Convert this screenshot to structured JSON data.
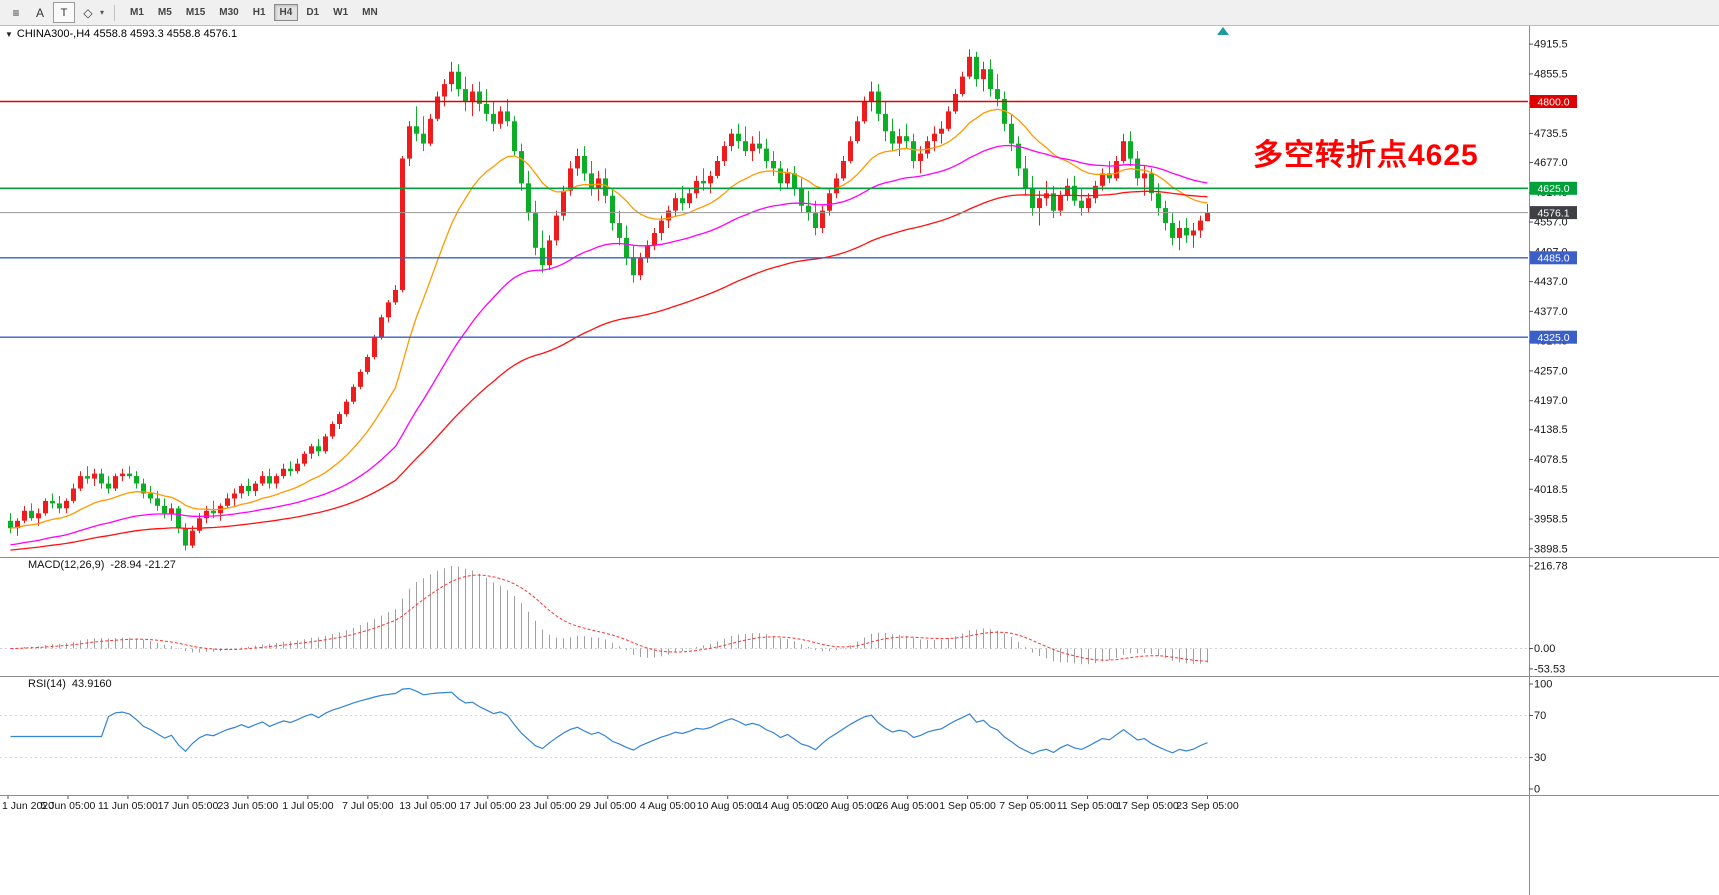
{
  "toolbar": {
    "tools": [
      {
        "name": "chart-shift-icon",
        "glyph": "≡"
      },
      {
        "name": "text-annotation-icon",
        "glyph": "A"
      },
      {
        "name": "textbox-icon",
        "glyph": "T",
        "boxed": true
      },
      {
        "name": "shapes-icon",
        "glyph": "◇",
        "caret": true
      }
    ],
    "timeframes": [
      "M1",
      "M5",
      "M15",
      "M30",
      "H1",
      "H4",
      "D1",
      "W1",
      "MN"
    ],
    "active_timeframe": "H4"
  },
  "chart": {
    "collapse_arrow": "▼",
    "header": "CHINA300-,H4 4558.8 4593.3 4558.8 4576.1",
    "annotation": {
      "text": "多空转折点4625",
      "color": "#ff0000"
    }
  },
  "chart_data": {
    "type": "candlestick",
    "symbol": "CHINA300-",
    "timeframe": "H4",
    "ohlc_display": {
      "open": 4558.8,
      "high": 4593.3,
      "low": 4558.8,
      "close": 4576.1
    },
    "colors": {
      "up": "#ee1c1c",
      "down": "#0cae26"
    },
    "price_axis": {
      "view_high": 4944,
      "view_low": 3884,
      "ticks": [
        4915.5,
        4855.5,
        4795.5,
        4735.5,
        4677.0,
        4617.0,
        4557.0,
        4497.0,
        4437.0,
        4377.0,
        4317.0,
        4257.0,
        4197.0,
        4138.5,
        4078.5,
        4018.5,
        3958.5,
        3898.5
      ]
    },
    "horizontal_lines": [
      {
        "price": 4800.0,
        "label": "4800.0",
        "line_color": "#e00000",
        "badge_color": "#e00000",
        "width": 1.4
      },
      {
        "price": 4625.0,
        "label": "4625.0",
        "line_color": "#00a13a",
        "badge_color": "#00a13a",
        "width": 1.6
      },
      {
        "price": 4576.1,
        "label": "4576.1",
        "line_color": "#999999",
        "badge_color": "#3f3f46",
        "width": 1
      },
      {
        "price": 4485.0,
        "label": "4485.0",
        "line_color": "#3a5fc8",
        "badge_color": "#3a5fc8",
        "width": 1.4
      },
      {
        "price": 4325.0,
        "label": "4325.0",
        "line_color": "#3a5fc8",
        "badge_color": "#3a5fc8",
        "width": 1.4
      }
    ],
    "moving_averages": [
      {
        "period": 18,
        "color": "#ff9a00"
      },
      {
        "period": 48,
        "color": "#ff00ff",
        "seed": 3905
      },
      {
        "period": 90,
        "color": "#ff1111",
        "seed": 3895
      }
    ],
    "indicators": {
      "macd": {
        "label": "MACD(12,26,9)",
        "values_label": "-28.94 -21.27",
        "params": [
          12,
          26,
          9
        ],
        "axis": [
          216.78,
          0,
          -53.53
        ],
        "histogram_color": "#a0a0a0",
        "signal_color": "#ff3333"
      },
      "rsi": {
        "label": "RSI(14)",
        "value_label": "43.9160",
        "period": 14,
        "axis": [
          100,
          70,
          30,
          0
        ],
        "levels": [
          70,
          30
        ],
        "line_color": "#3383d6"
      }
    },
    "time_labels": [
      "1 Jun 2020",
      "5 Jun 05:00",
      "11 Jun 05:00",
      "17 Jun 05:00",
      "23 Jun 05:00",
      "1 Jul 05:00",
      "7 Jul 05:00",
      "13 Jul 05:00",
      "17 Jul 05:00",
      "23 Jul 05:00",
      "29 Jul 05:00",
      "4 Aug 05:00",
      "10 Aug 05:00",
      "14 Aug 05:00",
      "20 Aug 05:00",
      "26 Aug 05:00",
      "1 Sep 05:00",
      "7 Sep 05:00",
      "11 Sep 05:00",
      "17 Sep 05:00",
      "23 Sep 05:00"
    ],
    "candles": [
      [
        3955,
        3970,
        3930,
        3940
      ],
      [
        3940,
        3960,
        3925,
        3955
      ],
      [
        3955,
        3985,
        3950,
        3975
      ],
      [
        3975,
        3990,
        3955,
        3960
      ],
      [
        3960,
        3980,
        3945,
        3970
      ],
      [
        3970,
        4000,
        3965,
        3995
      ],
      [
        3995,
        4010,
        3980,
        3990
      ],
      [
        3990,
        4005,
        3970,
        3980
      ],
      [
        3980,
        4000,
        3970,
        3995
      ],
      [
        3995,
        4030,
        3990,
        4020
      ],
      [
        4020,
        4055,
        4015,
        4045
      ],
      [
        4045,
        4065,
        4030,
        4040
      ],
      [
        4040,
        4060,
        4025,
        4050
      ],
      [
        4050,
        4060,
        4020,
        4030
      ],
      [
        4030,
        4045,
        4010,
        4020
      ],
      [
        4020,
        4050,
        4015,
        4045
      ],
      [
        4045,
        4060,
        4035,
        4050
      ],
      [
        4050,
        4065,
        4040,
        4045
      ],
      [
        4045,
        4055,
        4020,
        4030
      ],
      [
        4030,
        4040,
        4000,
        4010
      ],
      [
        4010,
        4025,
        3990,
        4000
      ],
      [
        4000,
        4015,
        3975,
        3985
      ],
      [
        3985,
        4000,
        3960,
        3970
      ],
      [
        3970,
        3990,
        3955,
        3980
      ],
      [
        3980,
        3985,
        3930,
        3940
      ],
      [
        3940,
        3950,
        3895,
        3905
      ],
      [
        3905,
        3945,
        3900,
        3935
      ],
      [
        3935,
        3970,
        3930,
        3960
      ],
      [
        3960,
        3985,
        3950,
        3975
      ],
      [
        3975,
        3995,
        3960,
        3970
      ],
      [
        3970,
        3990,
        3955,
        3985
      ],
      [
        3985,
        4010,
        3980,
        4000
      ],
      [
        4000,
        4020,
        3985,
        4010
      ],
      [
        4010,
        4030,
        4000,
        4025
      ],
      [
        4025,
        4040,
        4005,
        4015
      ],
      [
        4015,
        4035,
        4005,
        4030
      ],
      [
        4030,
        4055,
        4025,
        4045
      ],
      [
        4045,
        4060,
        4020,
        4030
      ],
      [
        4030,
        4050,
        4020,
        4045
      ],
      [
        4045,
        4070,
        4040,
        4060
      ],
      [
        4060,
        4075,
        4045,
        4055
      ],
      [
        4055,
        4080,
        4050,
        4070
      ],
      [
        4070,
        4095,
        4065,
        4090
      ],
      [
        4090,
        4110,
        4080,
        4105
      ],
      [
        4105,
        4120,
        4085,
        4095
      ],
      [
        4095,
        4130,
        4090,
        4125
      ],
      [
        4125,
        4155,
        4120,
        4150
      ],
      [
        4150,
        4175,
        4140,
        4170
      ],
      [
        4170,
        4200,
        4165,
        4195
      ],
      [
        4195,
        4230,
        4190,
        4225
      ],
      [
        4225,
        4260,
        4220,
        4255
      ],
      [
        4255,
        4290,
        4250,
        4285
      ],
      [
        4285,
        4330,
        4280,
        4325
      ],
      [
        4325,
        4370,
        4320,
        4365
      ],
      [
        4365,
        4400,
        4355,
        4395
      ],
      [
        4395,
        4430,
        4390,
        4420
      ],
      [
        4420,
        4690,
        4415,
        4685
      ],
      [
        4685,
        4760,
        4670,
        4750
      ],
      [
        4750,
        4790,
        4720,
        4735
      ],
      [
        4735,
        4770,
        4700,
        4715
      ],
      [
        4715,
        4775,
        4710,
        4765
      ],
      [
        4765,
        4820,
        4760,
        4810
      ],
      [
        4810,
        4845,
        4790,
        4835
      ],
      [
        4835,
        4880,
        4820,
        4860
      ],
      [
        4860,
        4875,
        4810,
        4825
      ],
      [
        4825,
        4850,
        4780,
        4800
      ],
      [
        4800,
        4835,
        4770,
        4820
      ],
      [
        4820,
        4840,
        4780,
        4795
      ],
      [
        4795,
        4825,
        4760,
        4775
      ],
      [
        4775,
        4800,
        4740,
        4755
      ],
      [
        4755,
        4790,
        4745,
        4780
      ],
      [
        4780,
        4805,
        4750,
        4760
      ],
      [
        4760,
        4770,
        4690,
        4700
      ],
      [
        4700,
        4715,
        4620,
        4635
      ],
      [
        4635,
        4660,
        4560,
        4575
      ],
      [
        4575,
        4600,
        4490,
        4505
      ],
      [
        4505,
        4540,
        4455,
        4470
      ],
      [
        4470,
        4530,
        4460,
        4520
      ],
      [
        4520,
        4580,
        4510,
        4570
      ],
      [
        4570,
        4630,
        4560,
        4620
      ],
      [
        4620,
        4680,
        4610,
        4665
      ],
      [
        4665,
        4705,
        4650,
        4690
      ],
      [
        4690,
        4710,
        4640,
        4655
      ],
      [
        4655,
        4680,
        4610,
        4625
      ],
      [
        4625,
        4660,
        4600,
        4645
      ],
      [
        4645,
        4665,
        4595,
        4610
      ],
      [
        4610,
        4625,
        4540,
        4555
      ],
      [
        4555,
        4580,
        4510,
        4525
      ],
      [
        4525,
        4550,
        4470,
        4485
      ],
      [
        4485,
        4510,
        4435,
        4450
      ],
      [
        4450,
        4495,
        4440,
        4485
      ],
      [
        4485,
        4520,
        4475,
        4510
      ],
      [
        4510,
        4545,
        4500,
        4535
      ],
      [
        4535,
        4570,
        4520,
        4560
      ],
      [
        4560,
        4590,
        4545,
        4580
      ],
      [
        4580,
        4615,
        4570,
        4605
      ],
      [
        4605,
        4630,
        4580,
        4595
      ],
      [
        4595,
        4625,
        4585,
        4615
      ],
      [
        4615,
        4650,
        4605,
        4640
      ],
      [
        4640,
        4665,
        4620,
        4635
      ],
      [
        4635,
        4660,
        4615,
        4650
      ],
      [
        4650,
        4690,
        4645,
        4680
      ],
      [
        4680,
        4720,
        4670,
        4710
      ],
      [
        4710,
        4745,
        4700,
        4735
      ],
      [
        4735,
        4755,
        4705,
        4720
      ],
      [
        4720,
        4750,
        4690,
        4700
      ],
      [
        4700,
        4730,
        4680,
        4715
      ],
      [
        4715,
        4740,
        4695,
        4705
      ],
      [
        4705,
        4725,
        4665,
        4680
      ],
      [
        4680,
        4700,
        4650,
        4665
      ],
      [
        4665,
        4680,
        4620,
        4635
      ],
      [
        4635,
        4665,
        4625,
        4655
      ],
      [
        4655,
        4670,
        4610,
        4625
      ],
      [
        4625,
        4645,
        4575,
        4590
      ],
      [
        4590,
        4620,
        4560,
        4575
      ],
      [
        4575,
        4600,
        4530,
        4545
      ],
      [
        4545,
        4590,
        4535,
        4580
      ],
      [
        4580,
        4625,
        4570,
        4615
      ],
      [
        4615,
        4655,
        4605,
        4645
      ],
      [
        4645,
        4690,
        4640,
        4680
      ],
      [
        4680,
        4730,
        4675,
        4720
      ],
      [
        4720,
        4770,
        4715,
        4760
      ],
      [
        4760,
        4810,
        4755,
        4800
      ],
      [
        4800,
        4840,
        4780,
        4820
      ],
      [
        4820,
        4835,
        4760,
        4775
      ],
      [
        4775,
        4800,
        4720,
        4740
      ],
      [
        4740,
        4765,
        4700,
        4715
      ],
      [
        4715,
        4745,
        4690,
        4730
      ],
      [
        4730,
        4755,
        4705,
        4720
      ],
      [
        4720,
        4735,
        4665,
        4680
      ],
      [
        4680,
        4710,
        4655,
        4695
      ],
      [
        4695,
        4730,
        4685,
        4720
      ],
      [
        4720,
        4750,
        4700,
        4735
      ],
      [
        4735,
        4760,
        4715,
        4745
      ],
      [
        4745,
        4790,
        4740,
        4780
      ],
      [
        4780,
        4825,
        4775,
        4815
      ],
      [
        4815,
        4860,
        4810,
        4850
      ],
      [
        4850,
        4905,
        4845,
        4890
      ],
      [
        4890,
        4900,
        4830,
        4845
      ],
      [
        4845,
        4880,
        4820,
        4865
      ],
      [
        4865,
        4885,
        4810,
        4825
      ],
      [
        4825,
        4855,
        4790,
        4805
      ],
      [
        4805,
        4820,
        4740,
        4755
      ],
      [
        4755,
        4775,
        4700,
        4715
      ],
      [
        4715,
        4730,
        4650,
        4665
      ],
      [
        4665,
        4690,
        4610,
        4625
      ],
      [
        4625,
        4650,
        4570,
        4585
      ],
      [
        4585,
        4620,
        4550,
        4605
      ],
      [
        4605,
        4640,
        4590,
        4615
      ],
      [
        4615,
        4630,
        4565,
        4580
      ],
      [
        4580,
        4620,
        4570,
        4610
      ],
      [
        4610,
        4645,
        4600,
        4630
      ],
      [
        4630,
        4650,
        4590,
        4600
      ],
      [
        4600,
        4625,
        4570,
        4585
      ],
      [
        4585,
        4615,
        4575,
        4605
      ],
      [
        4605,
        4640,
        4595,
        4630
      ],
      [
        4630,
        4665,
        4620,
        4655
      ],
      [
        4655,
        4680,
        4635,
        4645
      ],
      [
        4645,
        4690,
        4640,
        4680
      ],
      [
        4680,
        4735,
        4675,
        4720
      ],
      [
        4720,
        4740,
        4670,
        4685
      ],
      [
        4685,
        4700,
        4630,
        4645
      ],
      [
        4645,
        4670,
        4610,
        4655
      ],
      [
        4655,
        4665,
        4600,
        4615
      ],
      [
        4615,
        4635,
        4570,
        4585
      ],
      [
        4585,
        4600,
        4540,
        4555
      ],
      [
        4555,
        4575,
        4510,
        4525
      ],
      [
        4525,
        4560,
        4500,
        4545
      ],
      [
        4545,
        4565,
        4515,
        4530
      ],
      [
        4530,
        4555,
        4505,
        4540
      ],
      [
        4540,
        4570,
        4525,
        4560
      ],
      [
        4558.8,
        4593.3,
        4558.8,
        4576.1
      ]
    ]
  }
}
